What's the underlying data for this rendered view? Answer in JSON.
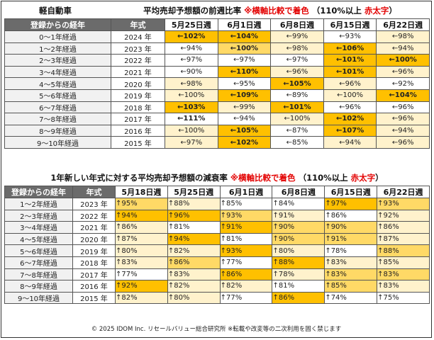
{
  "table1": {
    "title_left": "軽自動車",
    "title_main": "平均売却予想額の前週比率",
    "title_note": "※横軸比較で着色",
    "title_paren": "（110%以上",
    "title_red": "赤太字",
    "title_close": "）",
    "headers": [
      "登録からの経年",
      "年式",
      "5月25日週",
      "6月1日週",
      "6月8日週",
      "6月15日週",
      "6月22日週"
    ],
    "rows": [
      {
        "label": "0～1年経過",
        "year": "2024 年",
        "cells": [
          {
            "text": "←102%",
            "bg": "#ffc000",
            "style": "b"
          },
          {
            "text": "←104%",
            "bg": "#ffc000",
            "style": "b"
          },
          {
            "text": "←99%",
            "bg": "#fff2cc",
            "style": ""
          },
          {
            "text": "←93%",
            "bg": "#ffffff",
            "style": ""
          },
          {
            "text": "←98%",
            "bg": "#fff2cc",
            "style": ""
          }
        ]
      },
      {
        "label": "1～2年経過",
        "year": "2023 年",
        "cells": [
          {
            "text": "←94%",
            "bg": "#ffffff",
            "style": ""
          },
          {
            "text": "←100%",
            "bg": "#ffd966",
            "style": "b"
          },
          {
            "text": "←98%",
            "bg": "#fff2cc",
            "style": ""
          },
          {
            "text": "←106%",
            "bg": "#ffc000",
            "style": "b"
          },
          {
            "text": "←94%",
            "bg": "#fff2cc",
            "style": ""
          }
        ]
      },
      {
        "label": "2～3年経過",
        "year": "2022 年",
        "cells": [
          {
            "text": "←97%",
            "bg": "#ffffff",
            "style": ""
          },
          {
            "text": "←97%",
            "bg": "#ffffff",
            "style": ""
          },
          {
            "text": "←97%",
            "bg": "#ffffff",
            "style": ""
          },
          {
            "text": "←101%",
            "bg": "#ffc000",
            "style": "b"
          },
          {
            "text": "←100%",
            "bg": "#ffc000",
            "style": "b"
          }
        ]
      },
      {
        "label": "3～4年経過",
        "year": "2021 年",
        "cells": [
          {
            "text": "←90%",
            "bg": "#ffffff",
            "style": ""
          },
          {
            "text": "←110%",
            "bg": "#ffc000",
            "style": "b"
          },
          {
            "text": "←96%",
            "bg": "#fff2cc",
            "style": ""
          },
          {
            "text": "←101%",
            "bg": "#ffc000",
            "style": "b"
          },
          {
            "text": "←96%",
            "bg": "#fff2cc",
            "style": ""
          }
        ]
      },
      {
        "label": "4～5年経過",
        "year": "2020 年",
        "cells": [
          {
            "text": "←98%",
            "bg": "#fff2cc",
            "style": ""
          },
          {
            "text": "←95%",
            "bg": "#ffffff",
            "style": ""
          },
          {
            "text": "←105%",
            "bg": "#ffc000",
            "style": "b"
          },
          {
            "text": "←96%",
            "bg": "#fff2cc",
            "style": ""
          },
          {
            "text": "←92%",
            "bg": "#ffffff",
            "style": ""
          }
        ]
      },
      {
        "label": "5～6年経過",
        "year": "2019 年",
        "cells": [
          {
            "text": "←100%",
            "bg": "#fff2cc",
            "style": ""
          },
          {
            "text": "←109%",
            "bg": "#ffc000",
            "style": "b"
          },
          {
            "text": "←89%",
            "bg": "#ffffff",
            "style": "g"
          },
          {
            "text": "←100%",
            "bg": "#fff2cc",
            "style": ""
          },
          {
            "text": "←104%",
            "bg": "#ffc000",
            "style": "b"
          }
        ]
      },
      {
        "label": "6～7年経過",
        "year": "2018 年",
        "cells": [
          {
            "text": "←103%",
            "bg": "#ffc000",
            "style": "b"
          },
          {
            "text": "←99%",
            "bg": "#fff2cc",
            "style": ""
          },
          {
            "text": "←101%",
            "bg": "#ffc000",
            "style": "b"
          },
          {
            "text": "←96%",
            "bg": "#ffffff",
            "style": ""
          },
          {
            "text": "←96%",
            "bg": "#ffffff",
            "style": ""
          }
        ]
      },
      {
        "label": "7～8年経過",
        "year": "2017 年",
        "cells": [
          {
            "text": "←111%",
            "bg": "#ffffff",
            "style": "r"
          },
          {
            "text": "←94%",
            "bg": "#ffffff",
            "style": ""
          },
          {
            "text": "←100%",
            "bg": "#fff2cc",
            "style": ""
          },
          {
            "text": "←102%",
            "bg": "#ffc000",
            "style": "b"
          },
          {
            "text": "←96%",
            "bg": "#fff2cc",
            "style": ""
          }
        ]
      },
      {
        "label": "8～9年経過",
        "year": "2016 年",
        "cells": [
          {
            "text": "←100%",
            "bg": "#fff2cc",
            "style": ""
          },
          {
            "text": "←105%",
            "bg": "#ffc000",
            "style": "b"
          },
          {
            "text": "←87%",
            "bg": "#ffffff",
            "style": "g"
          },
          {
            "text": "←107%",
            "bg": "#ffc000",
            "style": "b"
          },
          {
            "text": "←94%",
            "bg": "#fff2cc",
            "style": ""
          }
        ]
      },
      {
        "label": "9～10年経過",
        "year": "2015 年",
        "cells": [
          {
            "text": "←97%",
            "bg": "#fff2cc",
            "style": ""
          },
          {
            "text": "←102%",
            "bg": "#ffc000",
            "style": "b"
          },
          {
            "text": "←85%",
            "bg": "#ffffff",
            "style": "g"
          },
          {
            "text": "←94%",
            "bg": "#fff2cc",
            "style": ""
          },
          {
            "text": "←96%",
            "bg": "#fff2cc",
            "style": ""
          }
        ]
      }
    ]
  },
  "table2": {
    "title_main": "1年新しい年式に対する平均売却予想額の減衰率",
    "title_note": "※横軸比較で着色",
    "title_paren": "（110%以上",
    "title_red": "赤太字",
    "title_close": "）",
    "headers": [
      "登録からの経年",
      "年式",
      "5月18日週",
      "5月25日週",
      "6月1日週",
      "6月8日週",
      "6月15日週",
      "6月22日週"
    ],
    "rows": [
      {
        "label": "1～2年経過",
        "year": "2023 年",
        "cells": [
          {
            "text": "↑95%",
            "bg": "#ffd966",
            "style": ""
          },
          {
            "text": "↑88%",
            "bg": "#fff2cc",
            "style": "g"
          },
          {
            "text": "↑85%",
            "bg": "#ffffff",
            "style": "g"
          },
          {
            "text": "↑84%",
            "bg": "#ffffff",
            "style": "g"
          },
          {
            "text": "↑97%",
            "bg": "#ffc000",
            "style": ""
          },
          {
            "text": "↑93%",
            "bg": "#ffd966",
            "style": ""
          }
        ]
      },
      {
        "label": "2～3年経過",
        "year": "2022 年",
        "cells": [
          {
            "text": "↑94%",
            "bg": "#ffc000",
            "style": ""
          },
          {
            "text": "↑96%",
            "bg": "#ffc000",
            "style": ""
          },
          {
            "text": "↑93%",
            "bg": "#ffd966",
            "style": ""
          },
          {
            "text": "↑91%",
            "bg": "#fff2cc",
            "style": ""
          },
          {
            "text": "↑86%",
            "bg": "#ffffff",
            "style": "g"
          },
          {
            "text": "↑92%",
            "bg": "#fff2cc",
            "style": ""
          }
        ]
      },
      {
        "label": "3～4年経過",
        "year": "2021 年",
        "cells": [
          {
            "text": "↑86%",
            "bg": "#fff2cc",
            "style": "g"
          },
          {
            "text": "↑81%",
            "bg": "#ffffff",
            "style": "g"
          },
          {
            "text": "↑91%",
            "bg": "#ffc000",
            "style": ""
          },
          {
            "text": "↑90%",
            "bg": "#ffd966",
            "style": ""
          },
          {
            "text": "↑90%",
            "bg": "#ffd966",
            "style": ""
          },
          {
            "text": "↑86%",
            "bg": "#fff2cc",
            "style": "g"
          }
        ]
      },
      {
        "label": "4～5年経過",
        "year": "2020 年",
        "cells": [
          {
            "text": "↑87%",
            "bg": "#fff2cc",
            "style": "g"
          },
          {
            "text": "↑94%",
            "bg": "#ffc000",
            "style": ""
          },
          {
            "text": "↑81%",
            "bg": "#ffffff",
            "style": "g"
          },
          {
            "text": "↑90%",
            "bg": "#ffd966",
            "style": ""
          },
          {
            "text": "↑91%",
            "bg": "#ffd966",
            "style": ""
          },
          {
            "text": "↑87%",
            "bg": "#fff2cc",
            "style": "g"
          }
        ]
      },
      {
        "label": "5～6年経過",
        "year": "2019 年",
        "cells": [
          {
            "text": "↑80%",
            "bg": "#fff2cc",
            "style": "g"
          },
          {
            "text": "↑82%",
            "bg": "#fff2cc",
            "style": "g"
          },
          {
            "text": "↑93%",
            "bg": "#ffc000",
            "style": ""
          },
          {
            "text": "↑80%",
            "bg": "#fff2cc",
            "style": "g"
          },
          {
            "text": "↑78%",
            "bg": "#ffffff",
            "style": "g"
          },
          {
            "text": "↑88%",
            "bg": "#ffd966",
            "style": "g"
          }
        ]
      },
      {
        "label": "6～7年経過",
        "year": "2018 年",
        "cells": [
          {
            "text": "↑83%",
            "bg": "#fff2cc",
            "style": "g"
          },
          {
            "text": "↑86%",
            "bg": "#ffd966",
            "style": "g"
          },
          {
            "text": "↑77%",
            "bg": "#ffffff",
            "style": "g"
          },
          {
            "text": "↑88%",
            "bg": "#ffc000",
            "style": "g"
          },
          {
            "text": "↑83%",
            "bg": "#fff2cc",
            "style": "g"
          },
          {
            "text": "↑85%",
            "bg": "#fff2cc",
            "style": "g"
          }
        ]
      },
      {
        "label": "7～8年経過",
        "year": "2017 年",
        "cells": [
          {
            "text": "↑77%",
            "bg": "#ffffff",
            "style": "g"
          },
          {
            "text": "↑83%",
            "bg": "#fff2cc",
            "style": "g"
          },
          {
            "text": "↑86%",
            "bg": "#ffc000",
            "style": "g"
          },
          {
            "text": "↑78%",
            "bg": "#fff2cc",
            "style": "g"
          },
          {
            "text": "↑83%",
            "bg": "#ffd966",
            "style": "g"
          },
          {
            "text": "↑83%",
            "bg": "#ffd966",
            "style": "g"
          }
        ]
      },
      {
        "label": "8～9年経過",
        "year": "2016 年",
        "cells": [
          {
            "text": "↑92%",
            "bg": "#ffc000",
            "style": ""
          },
          {
            "text": "↑82%",
            "bg": "#fff2cc",
            "style": "g"
          },
          {
            "text": "↑82%",
            "bg": "#fff2cc",
            "style": "g"
          },
          {
            "text": "↑81%",
            "bg": "#ffffff",
            "style": "g"
          },
          {
            "text": "↑85%",
            "bg": "#ffd966",
            "style": "g"
          },
          {
            "text": "↑83%",
            "bg": "#fff2cc",
            "style": "g"
          }
        ]
      },
      {
        "label": "9～10年経過",
        "year": "2015 年",
        "cells": [
          {
            "text": "↑82%",
            "bg": "#fff2cc",
            "style": "g"
          },
          {
            "text": "↑80%",
            "bg": "#fff2cc",
            "style": "g"
          },
          {
            "text": "↑77%",
            "bg": "#ffffff",
            "style": "g"
          },
          {
            "text": "↑86%",
            "bg": "#ffc000",
            "style": "g"
          },
          {
            "text": "↑74%",
            "bg": "#ffffff",
            "style": "g"
          },
          {
            "text": "↑75%",
            "bg": "#ffffff",
            "style": "g"
          }
        ]
      }
    ]
  },
  "footer": "© 2025 IDOM Inc. リセールバリュー総合研究所 ※転載や改変等の二次利用を固く禁じます"
}
